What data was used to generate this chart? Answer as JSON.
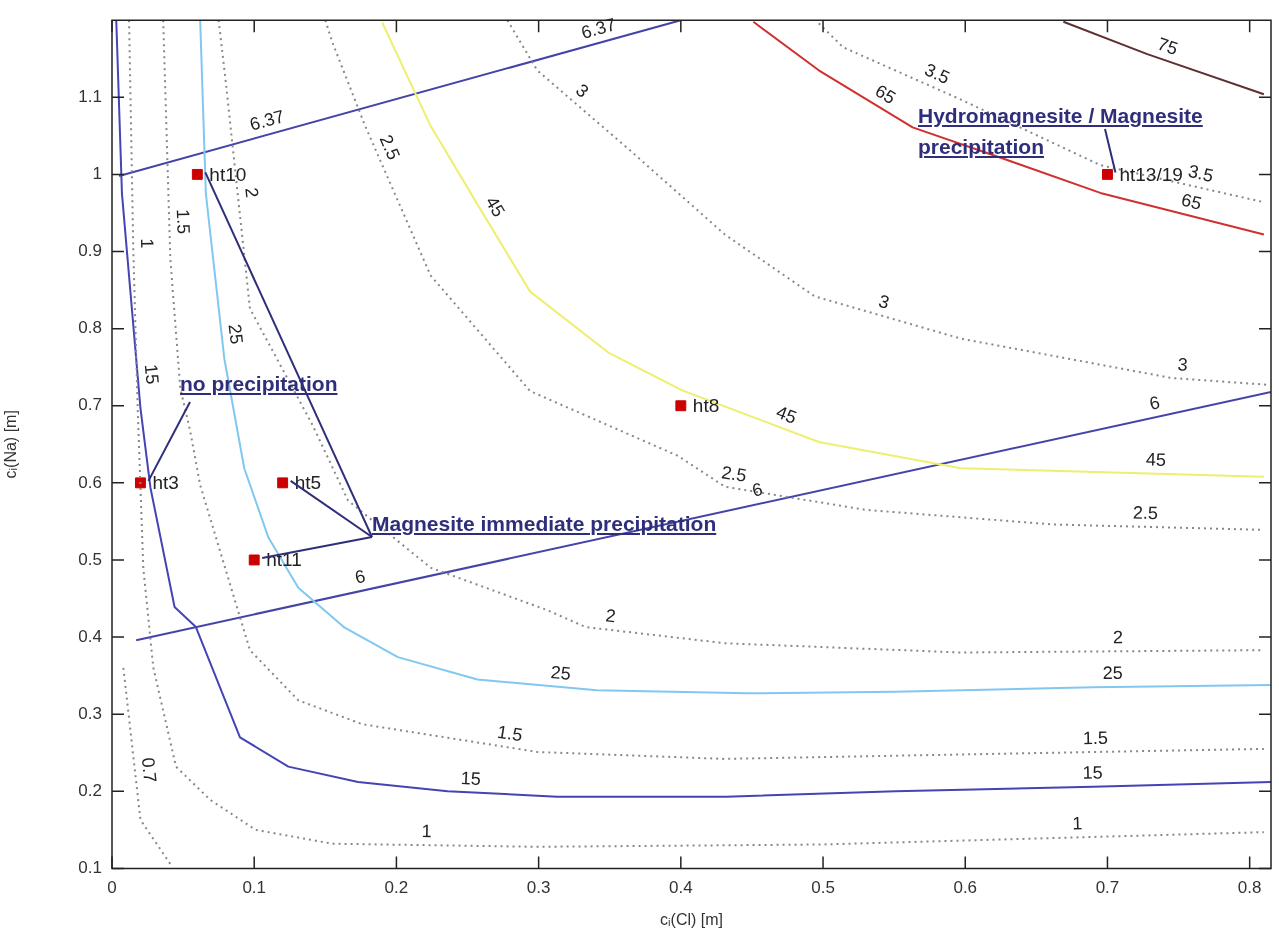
{
  "chart_data": {
    "type": "line",
    "xlabel": "cᵢ(Cl) [m]",
    "ylabel": "cᵢ(Na) [m]",
    "xlim": [
      0,
      0.815
    ],
    "ylim": [
      0.1,
      1.2
    ],
    "xticks": [
      0,
      0.1,
      0.2,
      0.3,
      0.4,
      0.5,
      0.6,
      0.7,
      0.8
    ],
    "yticks": [
      0.1,
      0.2,
      0.3,
      0.4,
      0.5,
      0.6,
      0.7,
      0.8,
      0.9,
      1,
      1.1
    ],
    "legend": false,
    "line_style": "solid",
    "series": [
      {
        "name": "0.7",
        "color": "#888888",
        "line_style": "dotted",
        "x": [
          0.008,
          0.009,
          0.02,
          0.042
        ],
        "values": [
          0.36,
          0.344,
          0.163,
          0.103
        ]
      },
      {
        "name": "1",
        "color": "#888888",
        "line_style": "dotted",
        "x": [
          0.012,
          0.015,
          0.018,
          0.022,
          0.029,
          0.045,
          0.069,
          0.101,
          0.155,
          0.299,
          0.499,
          0.81
        ],
        "values": [
          1.2,
          0.9,
          0.7,
          0.49,
          0.361,
          0.232,
          0.189,
          0.15,
          0.132,
          0.128,
          0.131,
          0.147
        ]
      },
      {
        "name": "1.5",
        "color": "#888888",
        "line_style": "dotted",
        "x": [
          0.036,
          0.041,
          0.048,
          0.055,
          0.062,
          0.097,
          0.131,
          0.176,
          0.299,
          0.431,
          0.692,
          0.81
        ],
        "values": [
          1.2,
          0.891,
          0.723,
          0.667,
          0.597,
          0.383,
          0.318,
          0.287,
          0.251,
          0.242,
          0.251,
          0.255
        ]
      },
      {
        "name": "2",
        "color": "#888888",
        "line_style": "dotted",
        "x": [
          0.075,
          0.08,
          0.097,
          0.141,
          0.166,
          0.224,
          0.306,
          0.333,
          0.431,
          0.597,
          0.81
        ],
        "values": [
          1.2,
          1.12,
          0.826,
          0.675,
          0.577,
          0.49,
          0.435,
          0.413,
          0.392,
          0.38,
          0.383
        ]
      },
      {
        "name": "2.5",
        "color": "#888888",
        "line_style": "dotted",
        "x": [
          0.15,
          0.155,
          0.178,
          0.224,
          0.294,
          0.398,
          0.431,
          0.53,
          0.662,
          0.81
        ],
        "values": [
          1.2,
          1.171,
          1.063,
          0.869,
          0.719,
          0.635,
          0.595,
          0.565,
          0.546,
          0.539
        ]
      },
      {
        "name": "3",
        "color": "#888888",
        "line_style": "dotted",
        "x": [
          0.278,
          0.299,
          0.365,
          0.431,
          0.494,
          0.597,
          0.745,
          0.814
        ],
        "values": [
          1.2,
          1.135,
          1.03,
          0.922,
          0.842,
          0.787,
          0.736,
          0.727
        ]
      },
      {
        "name": "3.5",
        "color": "#888888",
        "line_style": "dotted",
        "x": [
          0.497,
          0.514,
          0.597,
          0.695,
          0.81
        ],
        "values": [
          1.196,
          1.165,
          1.097,
          1.012,
          0.964
        ]
      },
      {
        "name": "15",
        "color": "#4444b4",
        "x": [
          0.003,
          0.007,
          0.02,
          0.027,
          0.044,
          0.059,
          0.09,
          0.124,
          0.173,
          0.236,
          0.313,
          0.432,
          0.551,
          0.69,
          0.815
        ],
        "values": [
          1.2,
          0.975,
          0.697,
          0.594,
          0.439,
          0.413,
          0.27,
          0.232,
          0.212,
          0.2,
          0.193,
          0.193,
          0.2,
          0.206,
          0.212
        ]
      },
      {
        "name": "25",
        "color": "#80c8f0",
        "x": [
          0.062,
          0.066,
          0.079,
          0.093,
          0.11,
          0.131,
          0.163,
          0.201,
          0.257,
          0.341,
          0.446,
          0.551,
          0.69,
          0.815
        ],
        "values": [
          1.2,
          0.975,
          0.761,
          0.619,
          0.529,
          0.464,
          0.413,
          0.374,
          0.345,
          0.331,
          0.327,
          0.329,
          0.335,
          0.338
        ]
      },
      {
        "name": "45",
        "color": "#eeee70",
        "x": [
          0.19,
          0.224,
          0.259,
          0.294,
          0.349,
          0.401,
          0.497,
          0.597,
          0.81
        ],
        "values": [
          1.197,
          1.063,
          0.955,
          0.848,
          0.769,
          0.72,
          0.653,
          0.619,
          0.608
        ]
      },
      {
        "name": "65",
        "color": "#d03030",
        "x": [
          0.451,
          0.497,
          0.563,
          0.629,
          0.695,
          0.81
        ],
        "values": [
          1.198,
          1.135,
          1.061,
          1.019,
          0.976,
          0.922
        ]
      },
      {
        "name": "75",
        "color": "#603030",
        "x": [
          0.669,
          0.728,
          0.81
        ],
        "values": [
          1.198,
          1.156,
          1.104
        ]
      },
      {
        "name": "6.37",
        "color": "#4444a8",
        "x": [
          0.005,
          0.4
        ],
        "values": [
          0.998,
          1.2
        ]
      },
      {
        "name": "6",
        "color": "#4444a8",
        "x": [
          0.017,
          0.815
        ],
        "values": [
          0.396,
          0.718
        ]
      },
      {
        "type": "scatter",
        "color": "#cc0000",
        "marker": "square",
        "x": [
          0.06,
          0.7,
          0.4,
          0.02,
          0.12,
          0.1
        ],
        "values": [
          1,
          1,
          0.7,
          0.6,
          0.6,
          0.5
        ]
      }
    ],
    "annotations": [
      {
        "text": "ht10",
        "x": 0.06,
        "y": 1
      },
      {
        "text": "ht13/19",
        "x": 0.7,
        "y": 1
      },
      {
        "text": "ht8",
        "x": 0.4,
        "y": 0.7
      },
      {
        "text": "ht3",
        "x": 0.02,
        "y": 0.6
      },
      {
        "text": "ht5",
        "x": 0.12,
        "y": 0.6
      },
      {
        "text": "ht11",
        "x": 0.1,
        "y": 0.5
      },
      {
        "text": "Hydromagnesite / Magnesite precipitation",
        "x": 0.7,
        "y": 1
      },
      {
        "text": "no precipitation",
        "x": 0.02,
        "y": 0.6
      },
      {
        "text": "Magnesite immediate precipitation",
        "x": 0.12,
        "y": 0.6
      }
    ]
  }
}
